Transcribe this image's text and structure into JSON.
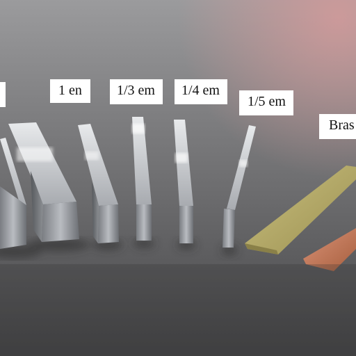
{
  "image": {
    "description_labels": {
      "label_left_partial": "",
      "label_1_en": "1 en",
      "label_1_3_em": "1/3 em",
      "label_1_4_em": "1/4 em",
      "label_1_5_em": "1/5 em",
      "label_brass": "Bras"
    },
    "colors": {
      "surface_light": "#9a9a9a",
      "surface_dark": "#3a3a3a",
      "lead_light": "#cfd2d6",
      "lead_dark": "#6a6d72",
      "brass": "#b8ad6a",
      "copper": "#c47a5a",
      "label_bg": "#ffffff"
    }
  }
}
